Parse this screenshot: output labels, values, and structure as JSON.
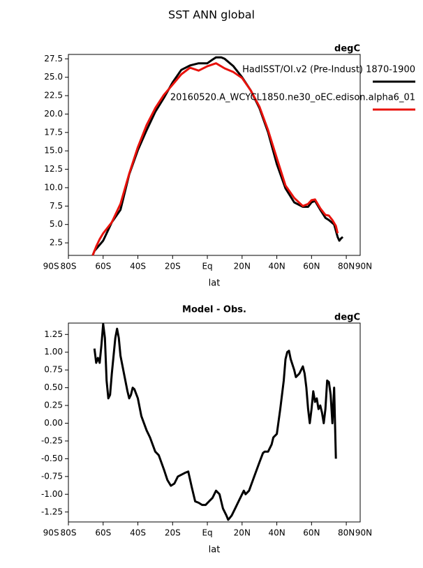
{
  "chart_data": [
    {
      "type": "line",
      "title": "SST ANN global",
      "units": "degC",
      "xlabel": "lat",
      "legend_loc": "upper right",
      "xlim": [
        -80,
        88
      ],
      "ylim": [
        0.8,
        28.1
      ],
      "xticks": [
        {
          "value": -90,
          "label": "90S"
        },
        {
          "value": -80,
          "label": "80S"
        },
        {
          "value": -60,
          "label": "60S"
        },
        {
          "value": -40,
          "label": "40S"
        },
        {
          "value": -20,
          "label": "20S"
        },
        {
          "value": 0,
          "label": "Eq"
        },
        {
          "value": 20,
          "label": "20N"
        },
        {
          "value": 40,
          "label": "40N"
        },
        {
          "value": 60,
          "label": "60N"
        },
        {
          "value": 80,
          "label": "80N"
        },
        {
          "value": 90,
          "label": "90N"
        }
      ],
      "yticks": [
        2.5,
        {
          "value": 5,
          "label": "5.0"
        },
        7.5,
        {
          "value": 10,
          "label": "10.0"
        },
        12.5,
        {
          "value": 15,
          "label": "15.0"
        },
        17.5,
        {
          "value": 20,
          "label": "20.0"
        },
        22.5,
        {
          "value": 25,
          "label": "25.0"
        },
        27.5
      ],
      "series": [
        {
          "name": "HadISST/OI.v2 (Pre-Indust) 1870-1900",
          "color": "#000000",
          "x": [
            -66,
            -65,
            -60,
            -55,
            -50,
            -45,
            -40,
            -35,
            -30,
            -25,
            -20,
            -15,
            -10,
            -5,
            0,
            3,
            5,
            8,
            10,
            15,
            20,
            25,
            30,
            35,
            40,
            45,
            50,
            55,
            58,
            60,
            62,
            65,
            68,
            70,
            73,
            75,
            76,
            77,
            78
          ],
          "values": [
            0.8,
            1.4,
            2.8,
            5.3,
            7,
            11.8,
            15.1,
            17.8,
            20.3,
            22.2,
            24.3,
            26,
            26.6,
            26.9,
            26.9,
            27.4,
            27.7,
            27.7,
            27.5,
            26.5,
            25,
            23.2,
            20.8,
            17.5,
            13.2,
            9.9,
            8,
            7.4,
            7.4,
            8,
            8.2,
            7,
            5.9,
            5.6,
            5,
            3.3,
            2.8,
            3.1,
            3.3
          ]
        },
        {
          "name": "20160520.A_WCYCL1850.ne30_oEC.edison.alpha6_01",
          "color": "#e8120c",
          "x": [
            -66,
            -64,
            -62,
            -60,
            -55,
            -50,
            -45,
            -40,
            -35,
            -30,
            -25,
            -20,
            -15,
            -10,
            -5,
            0,
            5,
            10,
            15,
            20,
            25,
            30,
            35,
            40,
            45,
            50,
            55,
            58,
            60,
            62,
            65,
            68,
            70,
            72,
            74,
            75
          ],
          "values": [
            0.8,
            2,
            3,
            3.8,
            5.3,
            7.8,
            11.9,
            15.5,
            18.5,
            20.8,
            22.6,
            24,
            25.4,
            26.3,
            25.9,
            26.5,
            26.9,
            26.2,
            25.7,
            24.9,
            23.2,
            21,
            17.8,
            14,
            10.3,
            8.6,
            7.5,
            7.8,
            8.3,
            8.4,
            7.2,
            6.3,
            6.2,
            5.6,
            4.8,
            3.8
          ]
        }
      ]
    },
    {
      "type": "line",
      "title": "Model - Obs.",
      "units": "degC",
      "xlabel": "lat",
      "xlim": [
        -80,
        88
      ],
      "ylim": [
        -1.39,
        1.41
      ],
      "xticks": [
        {
          "value": -90,
          "label": "90S"
        },
        {
          "value": -80,
          "label": "80S"
        },
        {
          "value": -60,
          "label": "60S"
        },
        {
          "value": -40,
          "label": "40S"
        },
        {
          "value": -20,
          "label": "20S"
        },
        {
          "value": 0,
          "label": "Eq"
        },
        {
          "value": 20,
          "label": "20N"
        },
        {
          "value": 40,
          "label": "40N"
        },
        {
          "value": 60,
          "label": "60N"
        },
        {
          "value": 80,
          "label": "80N"
        },
        {
          "value": 90,
          "label": "90N"
        }
      ],
      "yticks": [
        -1.25,
        {
          "value": -1,
          "label": "-1.00"
        },
        -0.75,
        {
          "value": -0.5,
          "label": "-0.50"
        },
        -0.25,
        {
          "value": 0,
          "label": "0.00"
        },
        0.25,
        {
          "value": 0.5,
          "label": "0.50"
        },
        0.75,
        {
          "value": 1,
          "label": "1.00"
        },
        1.25
      ],
      "series": [
        {
          "color": "#000000",
          "x": [
            -65,
            -64,
            -63,
            -62,
            -61,
            -60,
            -59,
            -58,
            -57,
            -56,
            -55,
            -53,
            -52,
            -51,
            -50,
            -48,
            -46,
            -45,
            -44,
            -43,
            -42,
            -40,
            -38,
            -35,
            -33,
            -30,
            -28,
            -25,
            -23,
            -21,
            -19,
            -17,
            -13,
            -11,
            -9,
            -7,
            -5,
            -3,
            -1,
            1,
            3,
            5,
            7,
            9,
            11,
            12,
            14,
            16,
            18,
            20,
            21,
            22,
            24,
            27,
            30,
            32,
            33,
            35,
            37,
            38,
            40,
            42,
            43,
            44,
            45,
            46,
            47,
            48,
            50,
            51,
            53,
            55,
            56,
            57,
            58,
            59,
            60,
            61,
            62,
            63,
            64,
            65,
            66,
            67,
            68,
            69,
            70,
            71,
            72,
            73,
            74
          ],
          "values": [
            1.05,
            0.85,
            0.92,
            0.85,
            1.1,
            1.4,
            1.2,
            0.6,
            0.35,
            0.4,
            0.7,
            1.2,
            1.33,
            1.2,
            0.95,
            0.7,
            0.45,
            0.35,
            0.4,
            0.5,
            0.48,
            0.35,
            0.1,
            -0.1,
            -0.2,
            -0.4,
            -0.45,
            -0.65,
            -0.8,
            -0.88,
            -0.85,
            -0.75,
            -0.7,
            -0.68,
            -0.9,
            -1.1,
            -1.12,
            -1.15,
            -1.15,
            -1.1,
            -1.05,
            -0.95,
            -1,
            -1.2,
            -1.3,
            -1.36,
            -1.3,
            -1.2,
            -1.1,
            -1,
            -0.95,
            -1,
            -0.95,
            -0.75,
            -0.55,
            -0.42,
            -0.4,
            -0.4,
            -0.3,
            -0.2,
            -0.15,
            0.2,
            0.4,
            0.6,
            0.9,
            1,
            1.02,
            0.9,
            0.75,
            0.65,
            0.7,
            0.8,
            0.7,
            0.5,
            0.2,
            0,
            0.2,
            0.45,
            0.3,
            0.35,
            0.2,
            0.25,
            0.15,
            0,
            0.2,
            0.6,
            0.58,
            0.4,
            0,
            0.5,
            -0.5
          ]
        }
      ]
    }
  ]
}
